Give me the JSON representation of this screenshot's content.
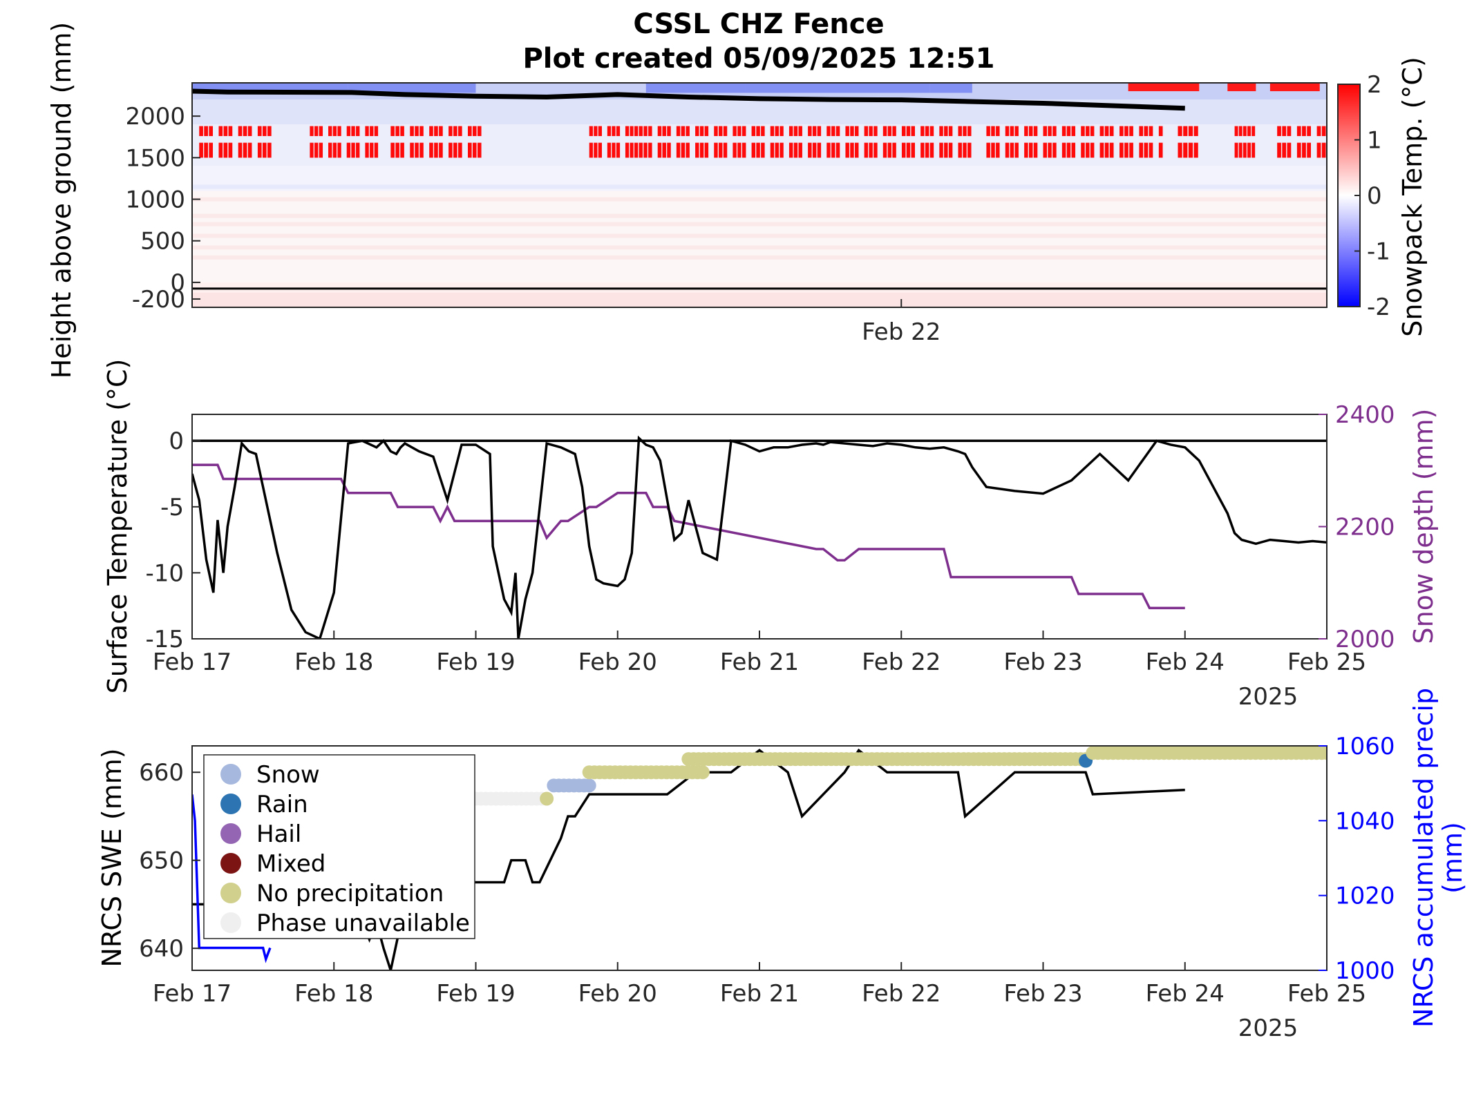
{
  "title": "CSSL CHZ Fence",
  "subtitle": "Plot created 05/09/2025 12:51",
  "colors": {
    "snow_depth": "#7e2f8e",
    "precip": "#0000ff",
    "swe": "#000000",
    "surface_temp": "#000000",
    "cold": "#0000ff",
    "warm": "#ff0000"
  },
  "chart_data": [
    {
      "type": "heatmap",
      "ylabel": "Height above ground (mm)",
      "x_tick_labels": [
        "Feb 22"
      ],
      "y_ticks": [
        -200,
        0,
        500,
        1000,
        1500,
        2000
      ],
      "y_tick_labels": [
        "-200",
        "0",
        "500",
        "1000",
        "1500",
        "2000"
      ],
      "ylim": [
        -300,
        2400
      ],
      "xlim": [
        "2025-02-17",
        "2025-02-25"
      ],
      "colorbar": {
        "label": "Snowpack Temp. (°C)",
        "ticks": [
          "-2",
          "-1",
          "0",
          "1",
          "2"
        ],
        "range": [
          -2,
          2
        ],
        "colormap": "blue-white-red"
      },
      "ground_line_mm": -75,
      "snow_surface_line": {
        "x": [
          "2025-02-17",
          "2025-02-17T06:00",
          "2025-02-18T03:00",
          "2025-02-18T12:00",
          "2025-02-19",
          "2025-02-19T12:00",
          "2025-02-20",
          "2025-02-20T12:00",
          "2025-02-21",
          "2025-02-21T12:00",
          "2025-02-22",
          "2025-02-22T12:00",
          "2025-02-23",
          "2025-02-23T12:00",
          "2025-02-24"
        ],
        "y": [
          2300,
          2290,
          2285,
          2260,
          2240,
          2230,
          2260,
          2230,
          2210,
          2200,
          2195,
          2175,
          2155,
          2125,
          2095
        ]
      }
    },
    {
      "type": "line",
      "ylabel": "Surface Temperature (°C)",
      "y2label": "Snow depth (mm)",
      "x_tick_labels": [
        "Feb 17",
        "Feb 18",
        "Feb 19",
        "Feb 20",
        "Feb 21",
        "Feb 22",
        "Feb 23",
        "Feb 24",
        "Feb 25"
      ],
      "year_label": "2025",
      "ylim": [
        -15,
        2
      ],
      "y_tick_labels": [
        "-15",
        "-10",
        "-5",
        "0"
      ],
      "y2lim": [
        2000,
        2400
      ],
      "y2_tick_labels": [
        "2000",
        "2200",
        "2400"
      ],
      "series": [
        {
          "name": "Surface temperature",
          "axis": "left",
          "x": [
            0,
            0.05,
            0.1,
            0.15,
            0.18,
            0.22,
            0.25,
            0.3,
            0.35,
            0.4,
            0.45,
            0.5,
            0.6,
            0.7,
            0.8,
            0.9,
            1.0,
            1.1,
            1.2,
            1.3,
            1.35,
            1.4,
            1.44,
            1.47,
            1.5,
            1.6,
            1.7,
            1.8,
            1.9,
            2.0,
            2.1,
            2.12,
            2.2,
            2.25,
            2.28,
            2.3,
            2.35,
            2.4,
            2.5,
            2.6,
            2.7,
            2.75,
            2.8,
            2.85,
            2.9,
            3.0,
            3.05,
            3.1,
            3.15,
            3.2,
            3.25,
            3.3,
            3.35,
            3.4,
            3.45,
            3.5,
            3.6,
            3.7,
            3.8,
            3.9,
            4.0,
            4.1,
            4.2,
            4.3,
            4.4,
            4.45,
            4.5,
            4.6,
            4.7,
            4.8,
            4.9,
            5.0,
            5.05,
            5.1,
            5.2,
            5.3,
            5.4,
            5.45,
            5.5,
            5.6,
            5.8,
            6.0,
            6.2,
            6.4,
            6.6,
            6.8,
            6.9,
            7.0,
            7.1,
            7.2,
            7.3,
            7.35,
            7.4,
            7.5,
            7.6,
            7.7,
            7.8,
            7.9,
            8.0
          ],
          "y": [
            -2.5,
            -4.5,
            -9.0,
            -11.5,
            -6.0,
            -10.0,
            -6.5,
            -3.5,
            -0.2,
            -0.8,
            -1.0,
            -3.5,
            -8.5,
            -12.8,
            -14.5,
            -15.0,
            -11.5,
            -0.2,
            0.0,
            -0.5,
            0.0,
            -0.8,
            -1.0,
            -0.5,
            -0.2,
            -0.8,
            -1.2,
            -4.5,
            -0.3,
            -0.3,
            -1.0,
            -8.0,
            -12.0,
            -13.0,
            -10.0,
            -15.0,
            -12.0,
            -10.0,
            -0.2,
            -0.5,
            -1.0,
            -3.5,
            -8.0,
            -10.5,
            -10.8,
            -11.0,
            -10.5,
            -8.5,
            0.2,
            -0.3,
            -0.5,
            -1.5,
            -4.5,
            -7.5,
            -7.0,
            -4.5,
            -8.5,
            -9.0,
            0.0,
            -0.3,
            -0.8,
            -0.5,
            -0.5,
            -0.3,
            -0.2,
            -0.3,
            -0.1,
            -0.2,
            -0.3,
            -0.4,
            -0.2,
            -0.3,
            -0.4,
            -0.5,
            -0.6,
            -0.5,
            -0.8,
            -1.0,
            -2.0,
            -3.5,
            -3.8,
            -4.0,
            -3.0,
            -1.0,
            -3.0,
            0.0,
            -0.3,
            -0.5,
            -1.5,
            -3.5,
            -5.5,
            -7.0,
            -7.5,
            -7.8,
            -7.5,
            -7.6,
            -7.7,
            -7.6,
            -7.7
          ]
        },
        {
          "name": "Snow depth",
          "axis": "right",
          "x": [
            0,
            0.18,
            0.22,
            1.05,
            1.1,
            1.4,
            1.45,
            1.7,
            1.75,
            1.8,
            1.85,
            2.45,
            2.5,
            2.6,
            2.65,
            2.8,
            2.85,
            3.0,
            3.05,
            3.2,
            3.25,
            3.35,
            3.4,
            4.4,
            4.45,
            4.55,
            4.6,
            4.7,
            4.75,
            5.3,
            5.35,
            6.2,
            6.25,
            6.7,
            6.75,
            7.0
          ],
          "y": [
            2310,
            2310,
            2285,
            2285,
            2260,
            2260,
            2235,
            2235,
            2210,
            2235,
            2210,
            2210,
            2180,
            2210,
            2210,
            2235,
            2235,
            2260,
            2260,
            2260,
            2235,
            2235,
            2210,
            2160,
            2160,
            2140,
            2140,
            2160,
            2160,
            2160,
            2110,
            2110,
            2080,
            2080,
            2055,
            2055
          ]
        }
      ]
    },
    {
      "type": "line",
      "ylabel": "NRCS SWE (mm)",
      "y2label": "NRCS accumulated precip (mm)",
      "x_tick_labels": [
        "Feb 17",
        "Feb 18",
        "Feb 19",
        "Feb 20",
        "Feb 21",
        "Feb 22",
        "Feb 23",
        "Feb 24",
        "Feb 25"
      ],
      "year_label": "2025",
      "ylim": [
        637.5,
        663
      ],
      "y_tick_labels": [
        "640",
        "650",
        "660"
      ],
      "y2lim": [
        1000,
        1060
      ],
      "y2_tick_labels": [
        "1000",
        "1020",
        "1040",
        "1060"
      ],
      "legend": {
        "position": "top-left",
        "entries": [
          {
            "label": "Snow",
            "color": "#a6b8de"
          },
          {
            "label": "Rain",
            "color": "#2c75b2"
          },
          {
            "label": "Hail",
            "color": "#9465b3"
          },
          {
            "label": "Mixed",
            "color": "#7c1414"
          },
          {
            "label": "No precipitation",
            "color": "#d1d08d"
          },
          {
            "label": "Phase unavailable",
            "color": "#efefef"
          }
        ]
      },
      "series": [
        {
          "name": "NRCS SWE",
          "axis": "left",
          "x": [
            0,
            1.15,
            1.25,
            1.3,
            1.35,
            1.4,
            1.5,
            1.65,
            1.7,
            2.0,
            2.2,
            2.25,
            2.35,
            2.4,
            2.45,
            2.6,
            2.65,
            2.7,
            2.8,
            3.0,
            3.35,
            3.55,
            3.8,
            4.0,
            4.2,
            4.3,
            4.6,
            4.7,
            4.9,
            5.0,
            5.4,
            5.45,
            5.8,
            6.0,
            6.3,
            6.35,
            7.0
          ],
          "y": [
            645,
            645,
            641,
            643,
            640,
            637.5,
            645,
            645,
            647.5,
            647.5,
            647.5,
            650,
            650,
            647.5,
            647.5,
            652.5,
            655,
            655,
            657.5,
            657.5,
            657.5,
            660,
            660,
            662.5,
            660,
            655,
            660,
            662.5,
            660,
            660,
            660,
            655,
            660,
            660,
            660,
            657.5,
            658
          ]
        },
        {
          "name": "NRCS accumulated precip",
          "axis": "right",
          "x": [
            0,
            0.02,
            0.05,
            0.5,
            0.52,
            0.55
          ],
          "y": [
            1047,
            1040,
            1006,
            1006,
            1003,
            1006
          ]
        }
      ],
      "phase_points": [
        {
          "phase": "Phase unavailable",
          "x_range": [
            2.0,
            2.5
          ],
          "y": 657
        },
        {
          "phase": "No precipitation",
          "x": 2.5,
          "y": 657
        },
        {
          "phase": "Snow",
          "x_range": [
            2.55,
            2.8
          ],
          "y": 658.5
        },
        {
          "phase": "No precipitation",
          "x_range": [
            2.8,
            3.6
          ],
          "y": 660
        },
        {
          "phase": "No precipitation",
          "x_range": [
            3.5,
            6.3
          ],
          "y": 661.5
        },
        {
          "phase": "Rain",
          "x": 6.3,
          "y": 661.3
        },
        {
          "phase": "No precipitation",
          "x_range": [
            6.35,
            8.0
          ],
          "y": 662.2
        }
      ]
    }
  ]
}
